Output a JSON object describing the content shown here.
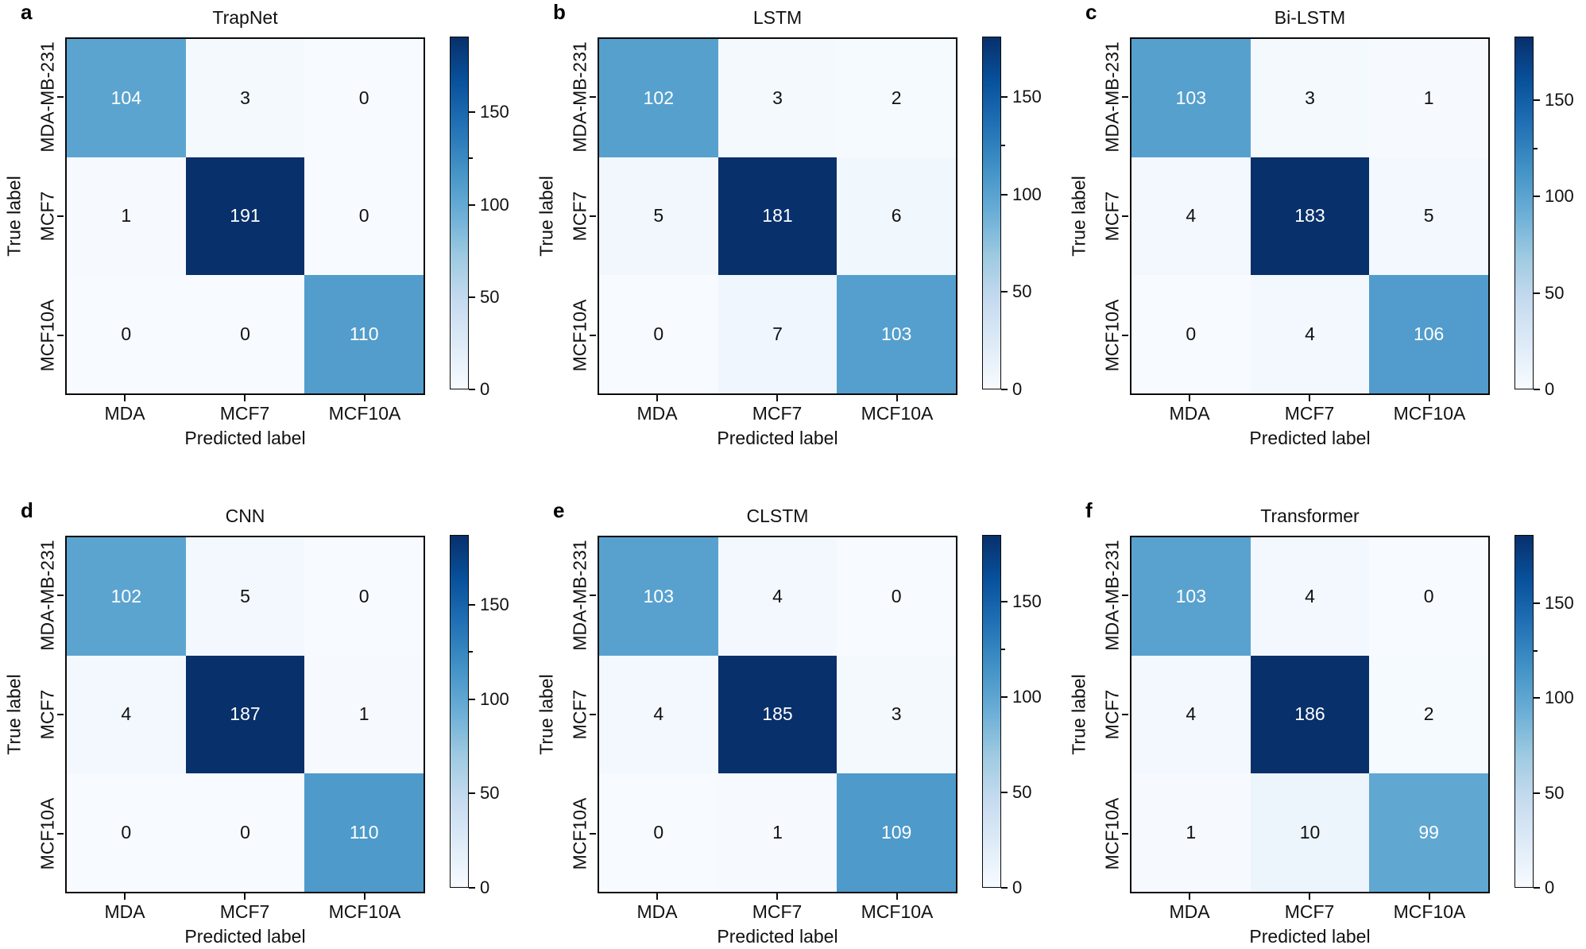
{
  "figure": {
    "xlabel": "Predicted label",
    "ylabel": "True label",
    "x_tick_labels": [
      "MDA",
      "MCF7",
      "MCF10A"
    ],
    "y_tick_labels": [
      "MDA-MB-231",
      "MCF7",
      "MCF10A"
    ],
    "colorbar_ticks": [
      150,
      100,
      50,
      0
    ],
    "colorbar_minor_ticks": [
      125
    ],
    "colormap": "Blues",
    "colormap_stops": [
      "#f7fbff",
      "#deebf7",
      "#c6dbef",
      "#9ecae1",
      "#6baed6",
      "#4292c6",
      "#2171b5",
      "#08519c",
      "#08306b"
    ],
    "cell_text_dark": "#111111",
    "cell_text_light": "#ffffff"
  },
  "chart_data": [
    {
      "type": "heatmap",
      "panel_letter": "a",
      "title": "TrapNet",
      "rows": [
        "MDA-MB-231",
        "MCF7",
        "MCF10A"
      ],
      "cols": [
        "MDA",
        "MCF7",
        "MCF10A"
      ],
      "values": [
        [
          104,
          3,
          0
        ],
        [
          1,
          191,
          0
        ],
        [
          0,
          0,
          110
        ]
      ],
      "xlabel": "Predicted label",
      "ylabel": "True label",
      "colorbar_tick_values": [
        0,
        50,
        100,
        150
      ],
      "colorbar_range": [
        0,
        191
      ],
      "legend_position": "right"
    },
    {
      "type": "heatmap",
      "panel_letter": "b",
      "title": "LSTM",
      "rows": [
        "MDA-MB-231",
        "MCF7",
        "MCF10A"
      ],
      "cols": [
        "MDA",
        "MCF7",
        "MCF10A"
      ],
      "values": [
        [
          102,
          3,
          2
        ],
        [
          5,
          181,
          6
        ],
        [
          0,
          7,
          103
        ]
      ],
      "xlabel": "Predicted label",
      "ylabel": "True label",
      "colorbar_tick_values": [
        0,
        50,
        100,
        150
      ],
      "colorbar_range": [
        0,
        181
      ],
      "legend_position": "right"
    },
    {
      "type": "heatmap",
      "panel_letter": "c",
      "title": "Bi-LSTM",
      "rows": [
        "MDA-MB-231",
        "MCF7",
        "MCF10A"
      ],
      "cols": [
        "MDA",
        "MCF7",
        "MCF10A"
      ],
      "values": [
        [
          103,
          3,
          1
        ],
        [
          4,
          183,
          5
        ],
        [
          0,
          4,
          106
        ]
      ],
      "xlabel": "Predicted label",
      "ylabel": "True label",
      "colorbar_tick_values": [
        0,
        50,
        100,
        150
      ],
      "colorbar_range": [
        0,
        183
      ],
      "legend_position": "right"
    },
    {
      "type": "heatmap",
      "panel_letter": "d",
      "title": "CNN",
      "rows": [
        "MDA-MB-231",
        "MCF7",
        "MCF10A"
      ],
      "cols": [
        "MDA",
        "MCF7",
        "MCF10A"
      ],
      "values": [
        [
          102,
          5,
          0
        ],
        [
          4,
          187,
          1
        ],
        [
          0,
          0,
          110
        ]
      ],
      "xlabel": "Predicted label",
      "ylabel": "True label",
      "colorbar_tick_values": [
        0,
        50,
        100,
        150
      ],
      "colorbar_range": [
        0,
        187
      ],
      "legend_position": "right"
    },
    {
      "type": "heatmap",
      "panel_letter": "e",
      "title": "CLSTM",
      "rows": [
        "MDA-MB-231",
        "MCF7",
        "MCF10A"
      ],
      "cols": [
        "MDA",
        "MCF7",
        "MCF10A"
      ],
      "values": [
        [
          103,
          4,
          0
        ],
        [
          4,
          185,
          3
        ],
        [
          0,
          1,
          109
        ]
      ],
      "xlabel": "Predicted label",
      "ylabel": "True label",
      "colorbar_tick_values": [
        0,
        50,
        100,
        150
      ],
      "colorbar_range": [
        0,
        185
      ],
      "legend_position": "right"
    },
    {
      "type": "heatmap",
      "panel_letter": "f",
      "title": "Transformer",
      "rows": [
        "MDA-MB-231",
        "MCF7",
        "MCF10A"
      ],
      "cols": [
        "MDA",
        "MCF7",
        "MCF10A"
      ],
      "values": [
        [
          103,
          4,
          0
        ],
        [
          4,
          186,
          2
        ],
        [
          1,
          10,
          99
        ]
      ],
      "xlabel": "Predicted label",
      "ylabel": "True label",
      "colorbar_tick_values": [
        0,
        50,
        100,
        150
      ],
      "colorbar_range": [
        0,
        186
      ],
      "legend_position": "right"
    }
  ]
}
